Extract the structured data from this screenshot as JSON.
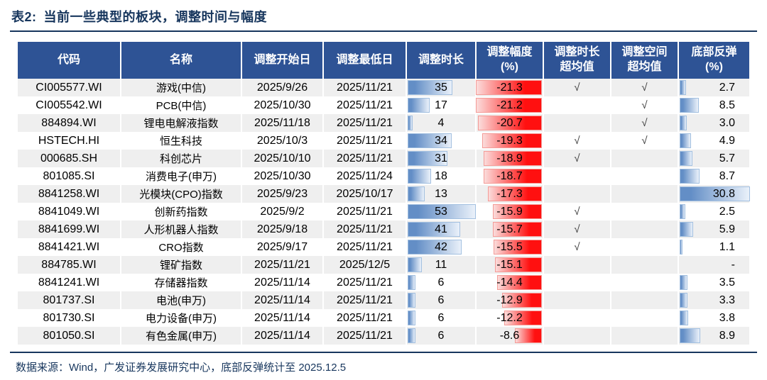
{
  "title": {
    "label": "表2:",
    "text": "当前一些典型的板块，调整时间与幅度"
  },
  "colors": {
    "header_bg": "#2E5395",
    "title_navy": "#17365D",
    "row_stripe": "#EFEFEF",
    "duration_bar_blue": "#638EC6",
    "drawdown_bar_red": "#FF1010",
    "rebound_bar_blue": "#638EC6"
  },
  "table": {
    "columns": [
      "代码",
      "名称",
      "调整开始日",
      "调整最低日",
      "调整时长",
      "调整幅度\n(%)",
      "调整时长\n超均值",
      "调整空间\n超均值",
      "底部反弹\n(%)"
    ],
    "scale": {
      "duration_max": 53,
      "drawdown_max": 21.3,
      "rebound_max": 30.8
    },
    "check_glyph": "√",
    "rows": [
      {
        "code": "CI005577.WI",
        "name": "游戏(中信)",
        "start": "2025/9/26",
        "low": "2025/11/21",
        "duration": 35,
        "drawdown": -21.3,
        "dur_exceed": "√",
        "space_exceed": "√",
        "rebound": "2.7"
      },
      {
        "code": "CI005542.WI",
        "name": "PCB(中信)",
        "start": "2025/10/30",
        "low": "2025/11/21",
        "duration": 17,
        "drawdown": -21.2,
        "dur_exceed": "",
        "space_exceed": "√",
        "rebound": "8.5"
      },
      {
        "code": "884894.WI",
        "name": "锂电电解液指数",
        "start": "2025/11/18",
        "low": "2025/11/21",
        "duration": 4,
        "drawdown": -20.7,
        "dur_exceed": "",
        "space_exceed": "√",
        "rebound": "3.0"
      },
      {
        "code": "HSTECH.HI",
        "name": "恒生科技",
        "start": "2025/10/3",
        "low": "2025/11/21",
        "duration": 34,
        "drawdown": -19.3,
        "dur_exceed": "√",
        "space_exceed": "√",
        "rebound": "4.9"
      },
      {
        "code": "000685.SH",
        "name": "科创芯片",
        "start": "2025/10/10",
        "low": "2025/11/21",
        "duration": 31,
        "drawdown": -18.9,
        "dur_exceed": "√",
        "space_exceed": "",
        "rebound": "5.7"
      },
      {
        "code": "801085.SI",
        "name": "消费电子(申万)",
        "start": "2025/10/30",
        "low": "2025/11/24",
        "duration": 18,
        "drawdown": -18.7,
        "dur_exceed": "",
        "space_exceed": "",
        "rebound": "8.7"
      },
      {
        "code": "8841258.WI",
        "name": "光模块(CPO)指数",
        "start": "2025/9/23",
        "low": "2025/10/17",
        "duration": 13,
        "drawdown": -17.3,
        "dur_exceed": "",
        "space_exceed": "",
        "rebound": "30.8"
      },
      {
        "code": "8841049.WI",
        "name": "创新药指数",
        "start": "2025/9/2",
        "low": "2025/11/21",
        "duration": 53,
        "drawdown": -15.9,
        "dur_exceed": "√",
        "space_exceed": "",
        "rebound": "2.5"
      },
      {
        "code": "8841699.WI",
        "name": "人形机器人指数",
        "start": "2025/9/18",
        "low": "2025/11/21",
        "duration": 41,
        "drawdown": -15.7,
        "dur_exceed": "√",
        "space_exceed": "",
        "rebound": "5.9"
      },
      {
        "code": "8841421.WI",
        "name": "CRO指数",
        "start": "2025/9/17",
        "low": "2025/11/21",
        "duration": 42,
        "drawdown": -15.5,
        "dur_exceed": "√",
        "space_exceed": "",
        "rebound": "1.1"
      },
      {
        "code": "884785.WI",
        "name": "锂矿指数",
        "start": "2025/11/21",
        "low": "2025/12/5",
        "duration": 11,
        "drawdown": -15.1,
        "dur_exceed": "",
        "space_exceed": "",
        "rebound": "-"
      },
      {
        "code": "8841241.WI",
        "name": "存储器指数",
        "start": "2025/11/14",
        "low": "2025/11/21",
        "duration": 6,
        "drawdown": -14.4,
        "dur_exceed": "",
        "space_exceed": "",
        "rebound": "3.5"
      },
      {
        "code": "801737.SI",
        "name": "电池(申万)",
        "start": "2025/11/14",
        "low": "2025/11/21",
        "duration": 6,
        "drawdown": -12.9,
        "dur_exceed": "",
        "space_exceed": "",
        "rebound": "3.3"
      },
      {
        "code": "801730.SI",
        "name": "电力设备(申万)",
        "start": "2025/11/14",
        "low": "2025/11/21",
        "duration": 6,
        "drawdown": -12.2,
        "dur_exceed": "",
        "space_exceed": "",
        "rebound": "3.8"
      },
      {
        "code": "801050.SI",
        "name": "有色金属(申万)",
        "start": "2025/11/14",
        "low": "2025/11/21",
        "duration": 6,
        "drawdown": -8.6,
        "dur_exceed": "",
        "space_exceed": "",
        "rebound": "8.9"
      }
    ]
  },
  "footer": {
    "text": "数据来源：Wind，广发证券发展研究中心，底部反弹统计至 2025.12.5"
  }
}
